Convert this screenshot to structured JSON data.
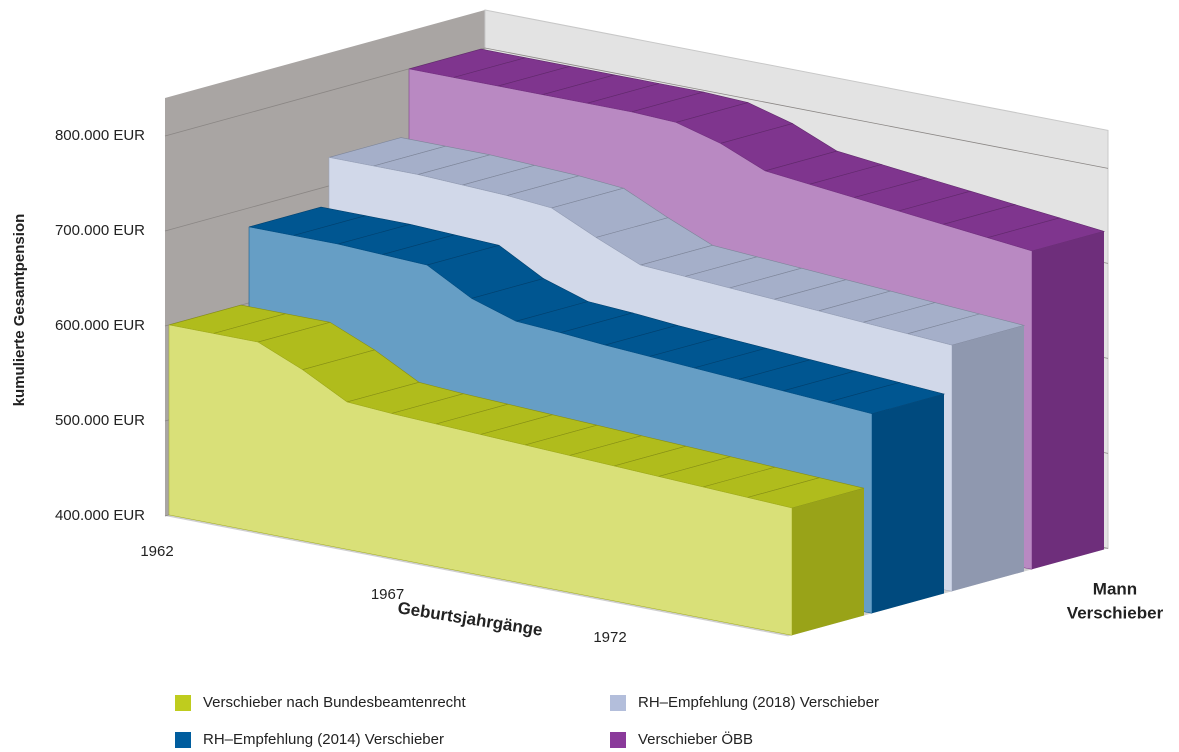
{
  "chart_data": {
    "type": "area3d",
    "y_axis_label": "kumulierte Gesamtpension",
    "x_axis_label": "Geburtsjahrgänge",
    "depth_axis_label": [
      "Mann",
      "Verschieber"
    ],
    "categories": [
      "1962",
      null,
      null,
      null,
      null,
      "1967",
      null,
      null,
      null,
      null,
      "1972",
      null,
      null,
      null,
      null
    ],
    "ylim": [
      400000,
      840000
    ],
    "yticks": [
      {
        "value": 400000,
        "label": "400.000 EUR"
      },
      {
        "value": 500000,
        "label": "500.000 EUR"
      },
      {
        "value": 600000,
        "label": "600.000 EUR"
      },
      {
        "value": 700000,
        "label": "700.000 EUR"
      },
      {
        "value": 800000,
        "label": "800.000 EUR"
      }
    ],
    "grid": true,
    "series": [
      {
        "name": "Verschieber nach Bundesbeamtenrecht",
        "color": "#bfcc1e",
        "values": [
          600000,
          600000,
          600000,
          580000,
          555000,
          552000,
          550000,
          548000,
          546000,
          544000,
          542000,
          540000,
          538000,
          536000,
          534000
        ]
      },
      {
        "name": "RH–Empfehlung (2014) Verschieber",
        "color": "#005d9e",
        "values": [
          680000,
          680000,
          680000,
          678000,
          676000,
          650000,
          635000,
          632000,
          628000,
          625000,
          622000,
          619000,
          616000,
          613000,
          610000
        ]
      },
      {
        "name": "RH–Empfehlung (2018) Verschieber",
        "color": "#b3bedb",
        "values": [
          730000,
          730000,
          730000,
          728000,
          726000,
          722000,
          700000,
          680000,
          677000,
          674000,
          671000,
          668000,
          665000,
          662000,
          659000
        ]
      },
      {
        "name": "Verschieber ÖBB",
        "color": "#8a3a9a",
        "values": [
          800000,
          800000,
          800000,
          800000,
          800000,
          800000,
          798000,
          785000,
          765000,
          760000,
          755000,
          750000,
          745000,
          740000,
          735000
        ]
      }
    ]
  }
}
